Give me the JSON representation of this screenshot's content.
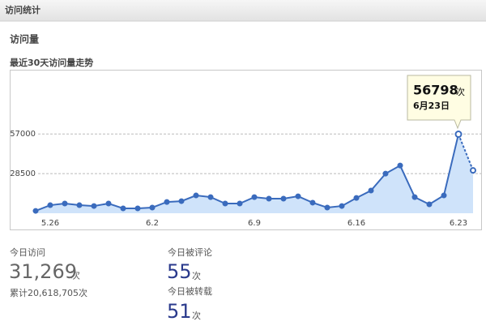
{
  "header": {
    "title": "访问统计"
  },
  "section_title": "访问量",
  "chart_data": {
    "type": "line",
    "title": "最近30天访问量走势",
    "categories": [
      null,
      "5.26",
      null,
      null,
      null,
      null,
      null,
      null,
      "6.2",
      null,
      null,
      null,
      null,
      null,
      null,
      "6.9",
      null,
      null,
      null,
      null,
      null,
      null,
      "6.16",
      null,
      null,
      null,
      null,
      null,
      null,
      "6.23",
      null
    ],
    "series": [
      {
        "color": "#3a6bbd",
        "values": [
          1700,
          5800,
          7000,
          5800,
          5200,
          7000,
          3500,
          3500,
          4100,
          8100,
          8700,
          12800,
          11600,
          7000,
          7000,
          11600,
          10500,
          10500,
          12200,
          7600,
          4100,
          5200,
          11000,
          16300,
          28500,
          34300,
          11600,
          6400,
          12800,
          56798,
          30800
        ]
      }
    ],
    "ylim": [
      0,
      102000
    ],
    "yticks": [
      28500,
      57000
    ],
    "grid": true,
    "tooltip": {
      "unit": "次",
      "date": "6月23日"
    }
  },
  "stats": {
    "visits": {
      "label": "今日访问",
      "value": "31,269",
      "unit": "次",
      "total": "累计20,618,705次"
    },
    "comments": {
      "label": "今日被评论",
      "value": "55",
      "unit": "次"
    },
    "reposts": {
      "label": "今日被转载",
      "value": "51",
      "unit": "次"
    }
  }
}
